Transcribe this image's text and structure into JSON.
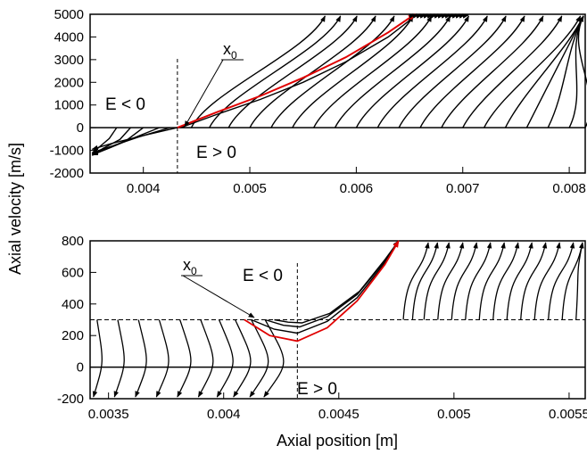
{
  "ylabel": "Axial velocity [m/s]",
  "xlabel": "Axial position [m]",
  "chart_data": [
    {
      "type": "line",
      "xlim": [
        0.0035,
        0.00815
      ],
      "ylim": [
        -2000,
        5000
      ],
      "yticks": [
        5000,
        4000,
        3000,
        2000,
        1000,
        0,
        -1000,
        -2000
      ],
      "yticklabels": [
        "5000",
        "4000",
        "3000",
        "2000",
        "1000",
        "0",
        "-1000",
        "-2000"
      ],
      "xticks": [
        0.004,
        0.005,
        0.006,
        0.007,
        0.008
      ],
      "xticklabels": [
        "0.004",
        "0.005",
        "0.006",
        "0.007",
        "0.008"
      ],
      "annotations": {
        "e_neg": "E < 0",
        "e_pos": "E > 0",
        "x0_main": "x",
        "x0_sub": "0"
      },
      "boundary_x": 0.00432,
      "x0_point": [
        0.00432,
        0
      ],
      "black_trajectory_starts_x": [
        0.00445,
        0.00462,
        0.0048,
        0.005,
        0.0052,
        0.0054,
        0.0056,
        0.0058,
        0.006,
        0.0062,
        0.0064,
        0.0066,
        0.0068,
        0.007,
        0.0072,
        0.0074,
        0.0076,
        0.0078,
        0.008,
        0.00815
      ],
      "red_trajectory": {
        "x": [
          0.00432,
          0.0047,
          0.0051,
          0.0055,
          0.0059,
          0.0063,
          0.00655
        ],
        "y": [
          0,
          700,
          1400,
          2200,
          3100,
          4200,
          5000
        ]
      },
      "black_trajectory": {
        "x": [
          0.00435,
          0.0047,
          0.0051,
          0.0055,
          0.0059,
          0.0063,
          0.00652
        ],
        "y": [
          0,
          600,
          1250,
          2000,
          2900,
          4000,
          4800
        ]
      },
      "negative_region_trajectories": [
        {
          "x": [
            0.00432,
            0.004,
            0.0037,
            0.00352
          ],
          "y": [
            0,
            -350,
            -700,
            -950
          ]
        },
        {
          "x": [
            0.00425,
            0.00395,
            0.0037,
            0.00352
          ],
          "y": [
            0,
            -420,
            -820,
            -1100
          ]
        },
        {
          "x": [
            0.00415,
            0.0039,
            0.00368,
            0.00352
          ],
          "y": [
            0,
            -470,
            -900,
            -1150
          ]
        },
        {
          "x": [
            0.004,
            0.00385,
            0.00366,
            0.00352
          ],
          "y": [
            0,
            -530,
            -940,
            -1200
          ]
        },
        {
          "x": [
            0.00388,
            0.00378,
            0.00362,
            0.00352
          ],
          "y": [
            0,
            -520,
            -920,
            -1220
          ]
        },
        {
          "x": [
            0.00375,
            0.00368,
            0.00358,
            0.00352
          ],
          "y": [
            0,
            -480,
            -880,
            -1150
          ]
        }
      ]
    },
    {
      "type": "line",
      "xlim": [
        0.00342,
        0.00557
      ],
      "ylim": [
        -200,
        800
      ],
      "yticks": [
        800,
        600,
        400,
        200,
        0,
        -200
      ],
      "yticklabels": [
        "800",
        "600",
        "400",
        "200",
        "0",
        "-200"
      ],
      "xticks": [
        0.0035,
        0.004,
        0.0045,
        0.005,
        0.0055
      ],
      "xticklabels": [
        "0.0035",
        "0.004",
        "0.0045",
        "0.005",
        "0.0055"
      ],
      "annotations": {
        "e_neg": "E < 0",
        "e_pos": "E > 0",
        "x0_main": "x",
        "x0_sub": "0"
      },
      "boundary_x": 0.00432,
      "dashed_y": 300,
      "x0_point": [
        0.00409,
        300
      ],
      "red_trajectory": {
        "x": [
          0.00409,
          0.0042,
          0.00432,
          0.00445,
          0.00458,
          0.0047,
          0.00476
        ],
        "y": [
          300,
          200,
          165,
          250,
          420,
          650,
          800
        ]
      },
      "black_trajectories": [
        {
          "x": [
            0.00412,
            0.00422,
            0.00432,
            0.00445,
            0.00458,
            0.0047,
            0.00476
          ],
          "y": [
            300,
            240,
            215,
            290,
            440,
            660,
            800
          ]
        },
        {
          "x": [
            0.00418,
            0.00426,
            0.00433,
            0.00445,
            0.00458,
            0.0047,
            0.00476
          ],
          "y": [
            300,
            265,
            255,
            320,
            460,
            670,
            800
          ]
        },
        {
          "x": [
            0.00422,
            0.00428,
            0.00434,
            0.00446,
            0.00459,
            0.0047,
            0.00476
          ],
          "y": [
            300,
            285,
            280,
            340,
            480,
            680,
            800
          ]
        }
      ],
      "upward_start_x": [
        0.00478,
        0.00482,
        0.00487,
        0.00493,
        0.00499,
        0.00505,
        0.00511,
        0.00517,
        0.00523,
        0.00529,
        0.00535,
        0.00541,
        0.00547,
        0.00553
      ],
      "downward_start_x": [
        0.00345,
        0.00354,
        0.00363,
        0.00372,
        0.00381,
        0.0039,
        0.00398,
        0.00405,
        0.00412,
        0.00418
      ]
    }
  ]
}
